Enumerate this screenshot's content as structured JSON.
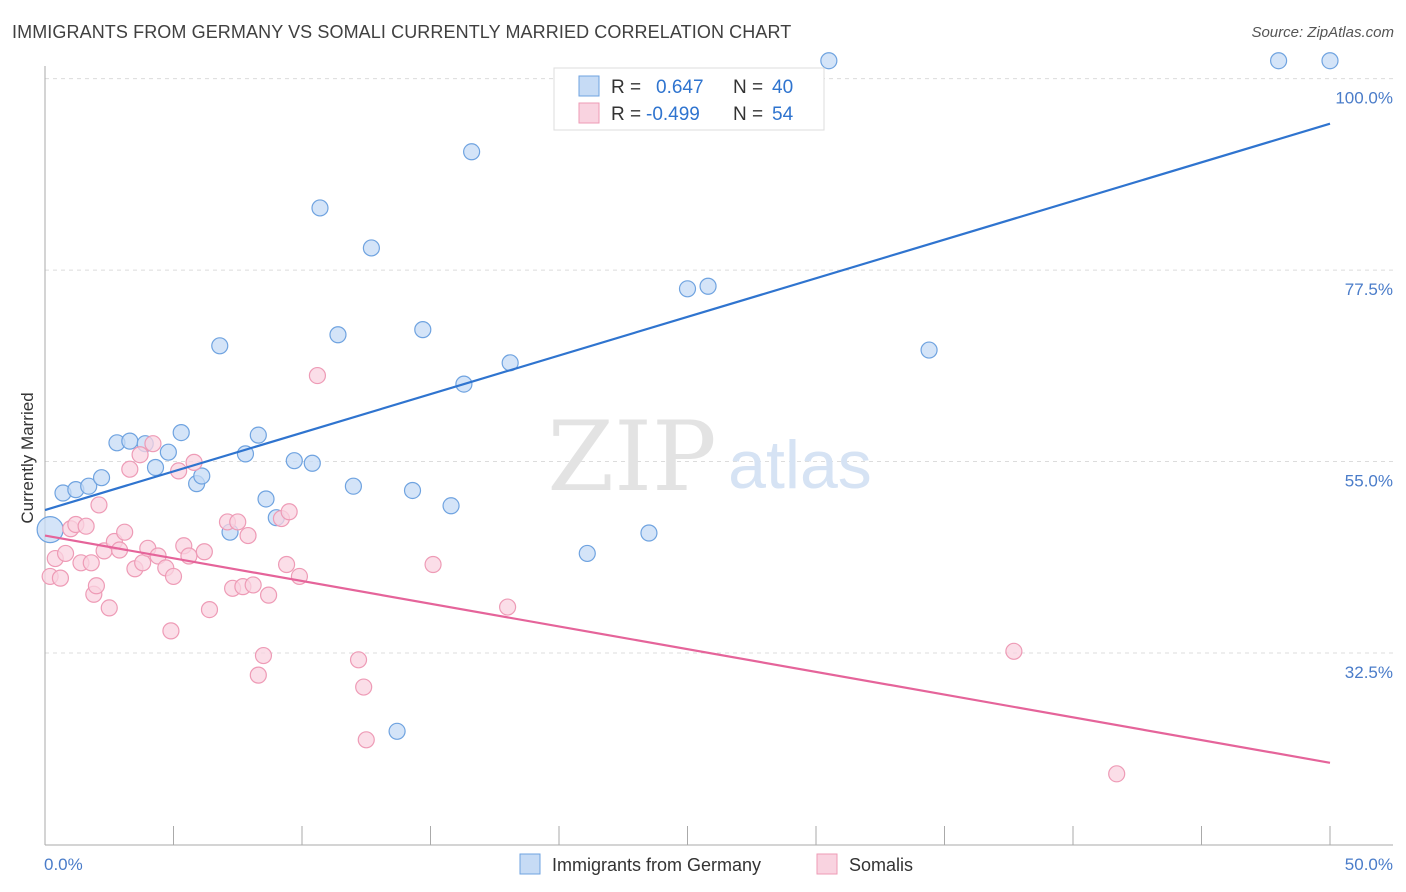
{
  "title": "IMMIGRANTS FROM GERMANY VS SOMALI CURRENTLY MARRIED CORRELATION CHART",
  "source": "Source: ZipAtlas.com",
  "watermark": {
    "zip": "ZIP",
    "atlas": "atlas"
  },
  "chart_data": {
    "type": "scatter",
    "ylabel": "Currently Married",
    "xlim": [
      0,
      50
    ],
    "ylim": [
      13,
      103
    ],
    "x_tick_labels": [
      "0.0%",
      "50.0%"
    ],
    "y_ticks": [
      32.5,
      55.0,
      77.5,
      100.0
    ],
    "y_tick_labels": [
      "32.5%",
      "55.0%",
      "77.5%",
      "100.0%"
    ],
    "grid": true,
    "legend_position": "top-center",
    "series": [
      {
        "name": "Immigrants from Germany",
        "color": "#6fa3e0",
        "fill": "#c6dbf5",
        "line_color": "#2f74cf",
        "stat_r_label": "R =",
        "stat_r": "0.647",
        "stat_n_label": "N =",
        "stat_n": "40",
        "trend": [
          [
            0,
            49.3
          ],
          [
            50,
            94.7
          ]
        ],
        "points": [
          [
            0.2,
            47
          ],
          [
            0.7,
            51.3
          ],
          [
            1.2,
            51.7
          ],
          [
            1.7,
            52.1
          ],
          [
            2.2,
            53.1
          ],
          [
            2.8,
            57.2
          ],
          [
            3.3,
            57.4
          ],
          [
            3.9,
            57.1
          ],
          [
            4.3,
            54.3
          ],
          [
            4.8,
            56.1
          ],
          [
            5.3,
            58.4
          ],
          [
            5.9,
            52.4
          ],
          [
            6.1,
            53.3
          ],
          [
            6.8,
            68.6
          ],
          [
            7.2,
            46.7
          ],
          [
            7.8,
            55.9
          ],
          [
            8.3,
            58.1
          ],
          [
            8.6,
            50.6
          ],
          [
            9.0,
            48.4
          ],
          [
            9.7,
            55.1
          ],
          [
            10.4,
            54.8
          ],
          [
            10.7,
            84.8
          ],
          [
            11.4,
            69.9
          ],
          [
            12.0,
            52.1
          ],
          [
            12.7,
            80.1
          ],
          [
            13.7,
            23.3
          ],
          [
            14.3,
            51.6
          ],
          [
            14.7,
            70.5
          ],
          [
            15.8,
            49.8
          ],
          [
            16.3,
            64.1
          ],
          [
            16.6,
            91.4
          ],
          [
            18.1,
            66.6
          ],
          [
            21.1,
            44.2
          ],
          [
            23.5,
            46.6
          ],
          [
            25.0,
            75.3
          ],
          [
            30.5,
            102.1
          ],
          [
            34.4,
            68.1
          ],
          [
            48.0,
            102.1
          ],
          [
            50.0,
            102.1
          ],
          [
            25.8,
            75.6
          ]
        ]
      },
      {
        "name": "Somalis",
        "color": "#ee9bb6",
        "fill": "#f9d3e0",
        "line_color": "#e5649a",
        "stat_r_label": "R =",
        "stat_r": "-0.499",
        "stat_n_label": "N =",
        "stat_n": "54",
        "trend": [
          [
            0,
            46.3
          ],
          [
            50,
            19.6
          ]
        ],
        "points": [
          [
            0.2,
            41.5
          ],
          [
            0.4,
            43.6
          ],
          [
            0.6,
            41.3
          ],
          [
            0.8,
            44.2
          ],
          [
            1.0,
            47.1
          ],
          [
            1.2,
            47.6
          ],
          [
            1.4,
            43.1
          ],
          [
            1.6,
            47.4
          ],
          [
            1.8,
            43.1
          ],
          [
            1.9,
            39.4
          ],
          [
            2.0,
            40.4
          ],
          [
            2.1,
            49.9
          ],
          [
            2.3,
            44.5
          ],
          [
            2.5,
            37.8
          ],
          [
            2.7,
            45.6
          ],
          [
            2.9,
            44.6
          ],
          [
            3.1,
            46.7
          ],
          [
            3.3,
            54.1
          ],
          [
            3.5,
            42.4
          ],
          [
            3.7,
            55.8
          ],
          [
            3.8,
            43.1
          ],
          [
            4.0,
            44.8
          ],
          [
            4.2,
            57.1
          ],
          [
            4.4,
            43.9
          ],
          [
            4.7,
            42.5
          ],
          [
            4.9,
            35.1
          ],
          [
            5.0,
            41.5
          ],
          [
            5.2,
            53.9
          ],
          [
            5.4,
            45.1
          ],
          [
            5.6,
            43.9
          ],
          [
            5.8,
            54.9
          ],
          [
            6.2,
            44.4
          ],
          [
            6.4,
            37.6
          ],
          [
            7.1,
            47.9
          ],
          [
            7.3,
            40.1
          ],
          [
            7.5,
            47.9
          ],
          [
            7.7,
            40.3
          ],
          [
            7.9,
            46.3
          ],
          [
            8.1,
            40.5
          ],
          [
            8.3,
            29.9
          ],
          [
            8.5,
            32.2
          ],
          [
            8.7,
            39.3
          ],
          [
            9.2,
            48.3
          ],
          [
            9.4,
            42.9
          ],
          [
            9.5,
            49.1
          ],
          [
            9.9,
            41.5
          ],
          [
            10.6,
            65.1
          ],
          [
            12.2,
            31.7
          ],
          [
            12.4,
            28.5
          ],
          [
            12.5,
            22.3
          ],
          [
            15.1,
            42.9
          ],
          [
            18.0,
            37.9
          ],
          [
            37.7,
            32.7
          ],
          [
            41.7,
            18.3
          ]
        ]
      }
    ]
  }
}
